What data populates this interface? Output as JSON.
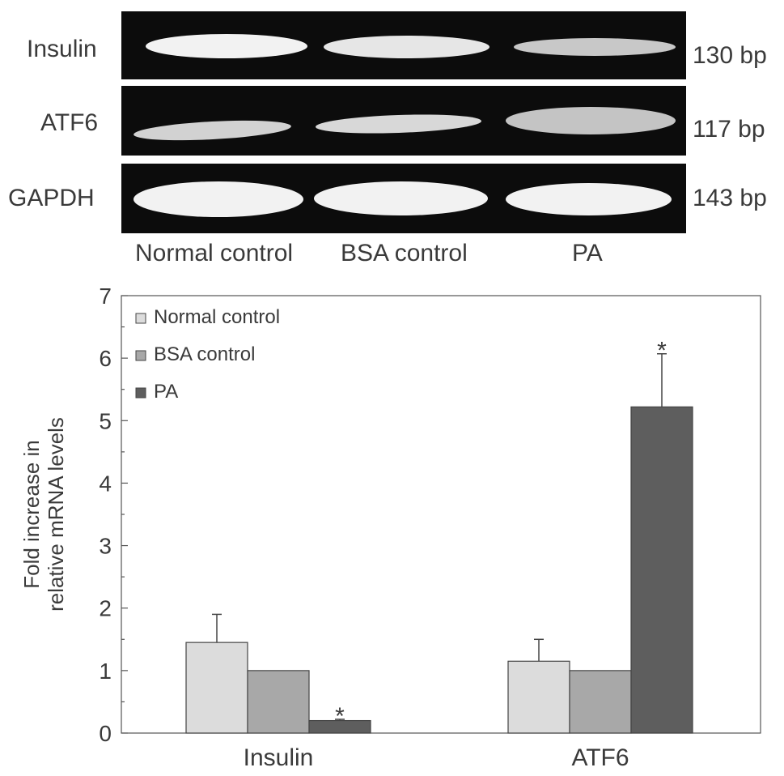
{
  "gel": {
    "rows": [
      {
        "name": "Insulin",
        "size": "130 bp"
      },
      {
        "name": "ATF6",
        "size": "117 bp"
      },
      {
        "name": "GAPDH",
        "size": "143 bp"
      }
    ],
    "lanes": [
      "Normal control",
      "BSA control",
      "PA"
    ]
  },
  "chart_data": {
    "type": "bar",
    "categories": [
      "Insulin",
      "ATF6"
    ],
    "series": [
      {
        "name": "Normal control",
        "values": [
          1.45,
          1.15
        ],
        "errors": [
          0.45,
          0.35
        ],
        "color": "#dcdcdc",
        "stars": [
          false,
          false
        ]
      },
      {
        "name": "BSA control",
        "values": [
          1.0,
          1.0
        ],
        "errors": [
          0,
          0
        ],
        "color": "#a8a8a8",
        "stars": [
          false,
          false
        ]
      },
      {
        "name": "PA",
        "values": [
          0.2,
          5.22
        ],
        "errors": [
          0.02,
          0.85
        ],
        "color": "#5e5e5e",
        "stars": [
          true,
          true
        ]
      }
    ],
    "ylabel": "Fold increase in relative mRNA levels",
    "ylabel_lines": [
      "Fold increase in",
      "relative mRNA levels"
    ],
    "ylim": [
      0,
      7
    ],
    "yticks": [
      "0",
      "1",
      "2",
      "3",
      "4",
      "5",
      "6",
      "7"
    ],
    "significance_marker": "*",
    "legend_position": "top-left",
    "grid": false
  }
}
